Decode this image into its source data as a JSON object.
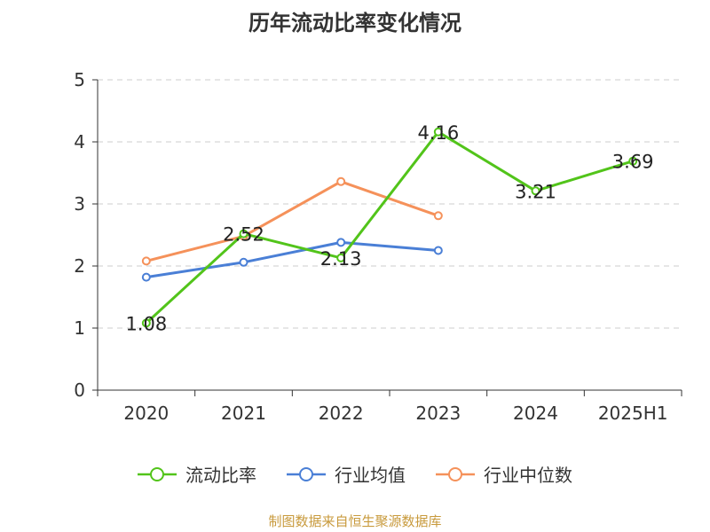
{
  "title": "历年流动比率变化情况",
  "source": "制图数据来自恒生聚源数据库",
  "chart_data": {
    "type": "line",
    "categories": [
      "2020",
      "2021",
      "2022",
      "2023",
      "2024",
      "2025H1"
    ],
    "ylim": [
      0,
      5
    ],
    "yticks": [
      0,
      1,
      2,
      3,
      4,
      5
    ],
    "grid": true,
    "legend_position": "bottom",
    "series": [
      {
        "name": "流动比率",
        "color": "#52c41a",
        "values": [
          1.08,
          2.52,
          2.13,
          4.16,
          3.21,
          3.69
        ],
        "labels": [
          "1.08",
          "2.52",
          "2.13",
          "4.16",
          "3.21",
          "3.69"
        ]
      },
      {
        "name": "行业均值",
        "color": "#4a7fd6",
        "values": [
          1.82,
          2.06,
          2.38,
          2.25,
          null,
          null
        ]
      },
      {
        "name": "行业中位数",
        "color": "#f5915a",
        "values": [
          2.08,
          2.48,
          3.36,
          2.81,
          null,
          null
        ]
      }
    ]
  }
}
